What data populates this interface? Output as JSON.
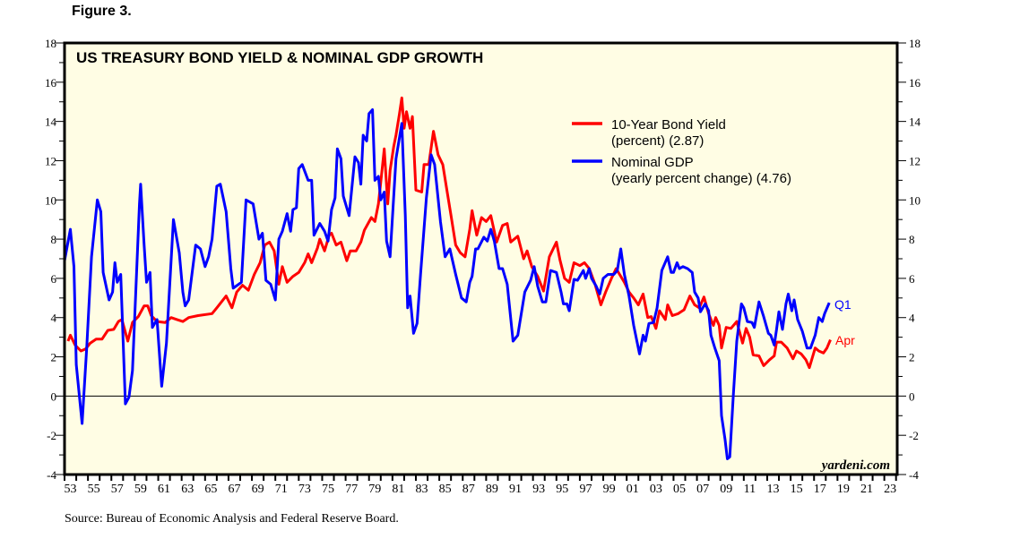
{
  "figure_label": "Figure 3.",
  "source": "Source: Bureau of Economic Analysis and Federal Reserve Board.",
  "watermark": "yardeni.com",
  "colors": {
    "background": "#FFFDE4",
    "yield": "#FF0000",
    "gdp": "#0000FF"
  },
  "chart_data": {
    "type": "line",
    "title": "US TREASURY BOND YIELD & NOMINAL GDP GROWTH",
    "xlabel": "",
    "ylabel": "",
    "xlim": [
      1952.5,
      2023.6
    ],
    "ylim": [
      -4,
      18
    ],
    "y_ticks": [
      -4,
      -2,
      0,
      2,
      4,
      6,
      8,
      10,
      12,
      14,
      16,
      18
    ],
    "y_tick_labels": [
      "-4",
      "-2",
      "0",
      "2",
      "4",
      "6",
      "8",
      "10",
      "12",
      "14",
      "16",
      "18"
    ],
    "x_tick_labels": [
      "53",
      "55",
      "57",
      "59",
      "61",
      "63",
      "65",
      "67",
      "69",
      "71",
      "73",
      "75",
      "77",
      "79",
      "81",
      "83",
      "85",
      "87",
      "89",
      "91",
      "93",
      "95",
      "97",
      "99",
      "01",
      "03",
      "05",
      "07",
      "09",
      "11",
      "13",
      "15",
      "17",
      "19",
      "21",
      "23"
    ],
    "y_axes": "both",
    "grid": false,
    "zero_line": true,
    "legend_position": "top-right",
    "series": [
      {
        "name": "10-Year Bond Yield",
        "legend_line2": "(percent) (2.87)",
        "end_label": "Apr",
        "color": "#FF0000",
        "x": [
          1952.8,
          1953.0,
          1953.4,
          1953.9,
          1954.3,
          1954.7,
          1955.2,
          1955.7,
          1956.2,
          1956.7,
          1957.1,
          1957.4,
          1957.9,
          1958.3,
          1958.8,
          1959.3,
          1959.6,
          1959.9,
          1960.4,
          1961.1,
          1961.6,
          1962.1,
          1962.6,
          1963.1,
          1963.9,
          1965.1,
          1965.5,
          1965.9,
          1966.3,
          1966.8,
          1967.2,
          1967.7,
          1968.2,
          1968.7,
          1969.2,
          1969.6,
          1970.0,
          1970.4,
          1970.8,
          1971.1,
          1971.5,
          1972.0,
          1972.5,
          1973.0,
          1973.3,
          1973.6,
          1974.1,
          1974.3,
          1974.7,
          1975.1,
          1975.3,
          1975.7,
          1976.1,
          1976.6,
          1976.9,
          1977.4,
          1977.8,
          1978.1,
          1978.7,
          1979.0,
          1979.3,
          1979.5,
          1979.8,
          1980.1,
          1980.3,
          1980.6,
          1980.8,
          1981.1,
          1981.3,
          1981.5,
          1981.7,
          1982.0,
          1982.2,
          1982.5,
          1983.0,
          1983.2,
          1983.6,
          1984.0,
          1984.4,
          1984.8,
          1985.2,
          1985.5,
          1985.9,
          1986.3,
          1986.7,
          1987.1,
          1987.3,
          1987.7,
          1988.1,
          1988.5,
          1988.9,
          1989.4,
          1989.9,
          1990.3,
          1990.6,
          1991.2,
          1991.7,
          1992.0,
          1992.4,
          1992.9,
          1993.4,
          1993.9,
          1994.5,
          1994.8,
          1995.2,
          1995.6,
          1996.0,
          1996.5,
          1996.9,
          1997.3,
          1997.8,
          1998.3,
          1998.7,
          1999.2,
          1999.6,
          1999.9,
          2000.3,
          2000.7,
          2001.1,
          2001.5,
          2001.9,
          2002.3,
          2002.6,
          2003.0,
          2003.3,
          2003.8,
          2004.0,
          2004.4,
          2004.9,
          2005.4,
          2005.9,
          2006.3,
          2006.7,
          2007.1,
          2007.5,
          2007.9,
          2008.1,
          2008.4,
          2008.6,
          2009.0,
          2009.4,
          2009.9,
          2010.4,
          2010.7,
          2011.0,
          2011.3,
          2011.8,
          2012.2,
          2012.7,
          2013.1,
          2013.3,
          2013.7,
          2014.2,
          2014.7,
          2015.0,
          2015.4,
          2015.8,
          2016.1,
          2016.6,
          2016.9,
          2017.3,
          2017.6,
          2017.9
        ],
        "values": [
          2.8,
          3.1,
          2.6,
          2.3,
          2.4,
          2.7,
          2.9,
          2.9,
          3.35,
          3.4,
          3.8,
          3.9,
          2.8,
          3.75,
          4.05,
          4.6,
          4.6,
          4.1,
          3.8,
          3.75,
          4.0,
          3.9,
          3.8,
          4.0,
          4.1,
          4.2,
          4.5,
          4.8,
          5.1,
          4.5,
          5.3,
          5.65,
          5.4,
          6.2,
          6.8,
          7.7,
          7.85,
          7.4,
          5.7,
          6.6,
          5.8,
          6.1,
          6.3,
          6.8,
          7.25,
          6.8,
          7.55,
          8.0,
          7.4,
          8.2,
          8.3,
          7.7,
          7.85,
          6.9,
          7.4,
          7.4,
          7.85,
          8.45,
          9.1,
          8.9,
          9.8,
          10.9,
          12.6,
          9.8,
          11.5,
          12.7,
          13.3,
          14.4,
          15.2,
          13.65,
          14.5,
          13.65,
          14.25,
          10.5,
          10.4,
          11.8,
          11.8,
          13.5,
          12.3,
          11.8,
          10.3,
          9.2,
          7.7,
          7.3,
          7.1,
          8.5,
          9.45,
          8.2,
          9.1,
          8.9,
          9.2,
          7.85,
          8.7,
          8.8,
          7.85,
          8.15,
          7.0,
          7.4,
          6.6,
          6.1,
          5.35,
          7.1,
          7.85,
          6.95,
          6.0,
          5.8,
          6.8,
          6.65,
          6.8,
          6.5,
          5.7,
          4.65,
          5.3,
          6.0,
          6.5,
          6.2,
          5.8,
          5.3,
          5.0,
          4.65,
          5.2,
          4.0,
          4.05,
          3.45,
          4.35,
          3.9,
          4.65,
          4.1,
          4.2,
          4.4,
          5.1,
          4.65,
          4.5,
          5.05,
          4.2,
          3.6,
          4.0,
          3.6,
          2.45,
          3.5,
          3.45,
          3.8,
          2.7,
          3.45,
          3.0,
          2.1,
          2.05,
          1.55,
          1.85,
          2.05,
          2.75,
          2.75,
          2.45,
          1.9,
          2.3,
          2.15,
          1.85,
          1.45,
          2.45,
          2.3,
          2.2,
          2.45,
          2.87
        ]
      },
      {
        "name": "Nominal GDP",
        "legend_line2": "(yearly percent change) (4.76)",
        "end_label": "Q1",
        "color": "#0000FF",
        "x": [
          1952.5,
          1953.0,
          1953.3,
          1953.5,
          1954.0,
          1954.4,
          1954.8,
          1955.3,
          1955.6,
          1955.8,
          1956.3,
          1956.6,
          1956.8,
          1957.0,
          1957.3,
          1957.7,
          1958.0,
          1958.3,
          1958.9,
          1959.0,
          1959.3,
          1959.5,
          1959.8,
          1960.0,
          1960.4,
          1960.8,
          1961.2,
          1961.8,
          1962.3,
          1962.6,
          1962.8,
          1963.1,
          1963.7,
          1964.1,
          1964.5,
          1964.8,
          1965.1,
          1965.5,
          1965.8,
          1966.3,
          1966.7,
          1966.9,
          1967.6,
          1968.0,
          1968.6,
          1969.1,
          1969.4,
          1969.7,
          1970.1,
          1970.5,
          1970.8,
          1971.1,
          1971.5,
          1971.8,
          1972.0,
          1972.3,
          1972.5,
          1972.8,
          1973.3,
          1973.6,
          1973.8,
          1974.3,
          1974.7,
          1975.0,
          1975.3,
          1975.6,
          1975.8,
          1976.1,
          1976.3,
          1976.8,
          1977.3,
          1977.6,
          1977.8,
          1978.0,
          1978.3,
          1978.5,
          1978.8,
          1979.0,
          1979.3,
          1979.5,
          1979.8,
          1980.0,
          1980.3,
          1980.8,
          1981.3,
          1981.6,
          1981.8,
          1982.0,
          1982.3,
          1982.6,
          1982.9,
          1983.4,
          1983.8,
          1984.1,
          1984.6,
          1985.0,
          1985.4,
          1985.9,
          1986.4,
          1986.8,
          1987.1,
          1987.3,
          1987.6,
          1987.8,
          1988.3,
          1988.6,
          1988.9,
          1989.2,
          1989.6,
          1989.9,
          1990.3,
          1990.8,
          1991.2,
          1991.8,
          1992.3,
          1992.6,
          1992.9,
          1993.3,
          1993.6,
          1994.0,
          1994.5,
          1994.9,
          1995.1,
          1995.4,
          1995.6,
          1996.0,
          1996.3,
          1996.8,
          1997.0,
          1997.3,
          1997.5,
          1997.9,
          1998.2,
          1998.5,
          1998.9,
          1999.4,
          1999.7,
          2000.0,
          2000.3,
          2000.7,
          2001.1,
          2001.6,
          2001.9,
          2002.1,
          2002.4,
          2002.8,
          2003.1,
          2003.5,
          2004.0,
          2004.3,
          2004.5,
          2004.8,
          2005.0,
          2005.3,
          2005.7,
          2006.1,
          2006.3,
          2006.6,
          2006.8,
          2007.2,
          2007.5,
          2007.7,
          2008.0,
          2008.4,
          2008.6,
          2008.9,
          2009.1,
          2009.3,
          2009.6,
          2009.9,
          2010.3,
          2010.5,
          2010.8,
          2011.2,
          2011.4,
          2011.8,
          2012.2,
          2012.6,
          2012.8,
          2013.1,
          2013.3,
          2013.5,
          2013.8,
          2014.1,
          2014.3,
          2014.6,
          2014.8,
          2015.1,
          2015.5,
          2015.9,
          2016.2,
          2016.6,
          2016.9,
          2017.2,
          2017.4,
          2017.8
        ],
        "values": [
          6.9,
          8.5,
          6.6,
          1.6,
          -1.4,
          2.5,
          7.1,
          10.0,
          9.4,
          6.3,
          4.9,
          5.3,
          6.8,
          5.8,
          6.2,
          -0.4,
          -0.05,
          1.3,
          9.8,
          10.8,
          7.7,
          5.8,
          6.3,
          3.5,
          3.9,
          0.5,
          2.7,
          9.0,
          7.3,
          5.3,
          4.6,
          4.9,
          7.7,
          7.5,
          6.6,
          7.1,
          8.0,
          10.7,
          10.8,
          9.4,
          6.5,
          5.5,
          5.8,
          10.0,
          9.8,
          8.0,
          8.3,
          5.9,
          5.7,
          4.9,
          8.0,
          8.4,
          9.3,
          8.4,
          9.5,
          9.6,
          11.6,
          11.8,
          11.0,
          11.0,
          8.2,
          8.8,
          8.4,
          7.9,
          9.5,
          10.1,
          12.6,
          12.1,
          10.2,
          9.2,
          12.2,
          11.9,
          10.8,
          13.3,
          13.0,
          14.4,
          14.6,
          11.0,
          11.2,
          10.0,
          10.4,
          7.9,
          7.1,
          12.1,
          13.9,
          9.2,
          4.5,
          5.1,
          3.2,
          3.7,
          6.2,
          10.1,
          12.3,
          11.8,
          8.9,
          7.1,
          7.5,
          6.2,
          5.0,
          4.8,
          5.8,
          6.1,
          7.5,
          7.5,
          8.1,
          7.9,
          8.5,
          7.9,
          6.5,
          6.5,
          5.7,
          2.8,
          3.1,
          5.3,
          5.9,
          6.6,
          5.6,
          4.8,
          4.8,
          6.4,
          6.3,
          5.3,
          4.7,
          4.7,
          4.35,
          5.95,
          5.9,
          6.4,
          6.0,
          6.5,
          6.0,
          5.6,
          5.2,
          6.0,
          6.2,
          6.2,
          6.4,
          7.5,
          6.2,
          5.1,
          3.6,
          2.15,
          3.1,
          2.8,
          3.7,
          3.75,
          4.5,
          6.4,
          7.1,
          6.3,
          6.3,
          6.8,
          6.5,
          6.6,
          6.5,
          6.3,
          5.3,
          5.0,
          4.3,
          4.7,
          4.35,
          3.1,
          2.5,
          1.8,
          -1.0,
          -2.2,
          -3.2,
          -3.1,
          0.0,
          2.8,
          4.7,
          4.5,
          3.8,
          3.75,
          3.5,
          4.8,
          4.05,
          3.2,
          3.1,
          2.6,
          3.4,
          4.3,
          3.4,
          4.7,
          5.2,
          4.35,
          4.9,
          3.9,
          3.3,
          2.45,
          2.45,
          3.1,
          4.0,
          3.8,
          4.2,
          4.76
        ]
      }
    ]
  }
}
